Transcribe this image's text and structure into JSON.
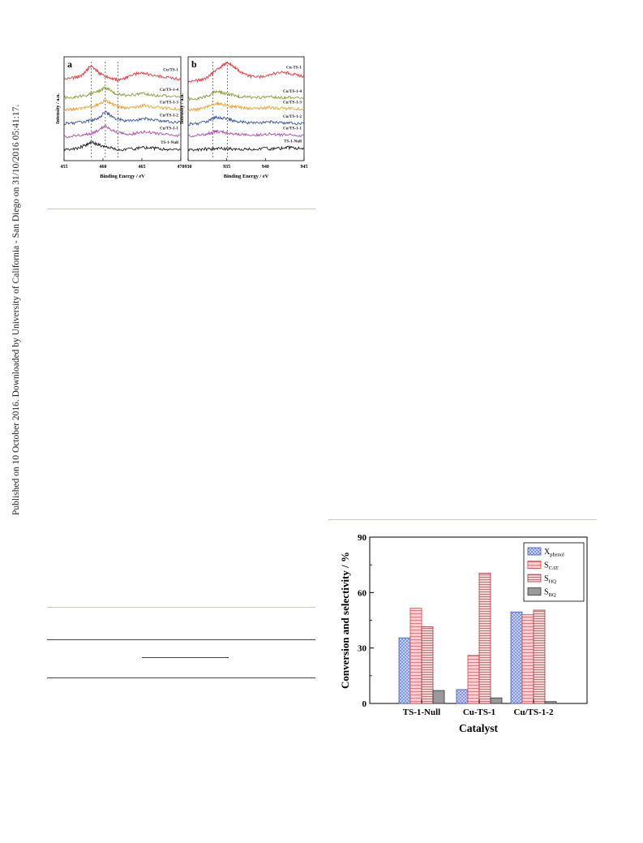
{
  "side_note": "Published on 10 October 2016. Downloaded by University of California - San Diego on 31/10/2016 05:41:17.",
  "chart_data": [
    {
      "type": "line",
      "panel_label": "a",
      "xlabel": "Binding Energy  / eV",
      "ylabel": "Intensity / a.u.",
      "xlim": [
        455,
        470
      ],
      "xticks": [
        "455",
        "460",
        "465",
        "470"
      ],
      "dashed_lines_x": [
        458.5,
        460.3,
        461.9
      ],
      "series": [
        {
          "name": "Cu/TS-1",
          "color": "#e8383d",
          "values": [
            [
              455,
              6.35
            ],
            [
              456,
              6.45
            ],
            [
              457,
              6.55
            ],
            [
              457.7,
              6.85
            ],
            [
              458.4,
              7.35
            ],
            [
              459.0,
              7.1
            ],
            [
              459.6,
              6.75
            ],
            [
              460.3,
              6.6
            ],
            [
              461.0,
              6.45
            ],
            [
              461.8,
              6.3
            ],
            [
              462.5,
              6.35
            ],
            [
              463.2,
              6.5
            ],
            [
              464.0,
              6.7
            ],
            [
              464.8,
              6.85
            ],
            [
              465.6,
              6.75
            ],
            [
              466.5,
              6.6
            ],
            [
              467.5,
              6.55
            ],
            [
              468.5,
              6.45
            ],
            [
              470,
              6.35
            ]
          ]
        },
        {
          "name": "Cu/TS-1-4",
          "color": "#8a9a3a",
          "values": [
            [
              455,
              5.0
            ],
            [
              456,
              5.05
            ],
            [
              457,
              5.1
            ],
            [
              458,
              5.2
            ],
            [
              458.6,
              5.35
            ],
            [
              459.4,
              5.45
            ],
            [
              460.2,
              5.75
            ],
            [
              460.8,
              5.6
            ],
            [
              461.5,
              5.35
            ],
            [
              462.3,
              5.2
            ],
            [
              463.2,
              5.15
            ],
            [
              464.2,
              5.25
            ],
            [
              465.0,
              5.35
            ],
            [
              466.0,
              5.25
            ],
            [
              467.0,
              5.15
            ],
            [
              468.5,
              5.1
            ],
            [
              470,
              5.05
            ]
          ]
        },
        {
          "name": "Cu/TS-1-3",
          "color": "#f0a030",
          "values": [
            [
              455,
              4.1
            ],
            [
              456,
              4.15
            ],
            [
              457,
              4.2
            ],
            [
              458,
              4.3
            ],
            [
              458.8,
              4.4
            ],
            [
              459.6,
              4.55
            ],
            [
              460.3,
              4.85
            ],
            [
              461.0,
              4.6
            ],
            [
              461.8,
              4.35
            ],
            [
              462.6,
              4.3
            ],
            [
              463.5,
              4.25
            ],
            [
              464.5,
              4.35
            ],
            [
              465.3,
              4.45
            ],
            [
              466.3,
              4.35
            ],
            [
              467.5,
              4.25
            ],
            [
              468.5,
              4.2
            ],
            [
              470,
              4.15
            ]
          ]
        },
        {
          "name": "Cu/TS-1-2",
          "color": "#3a57a8",
          "values": [
            [
              455,
              3.1
            ],
            [
              456,
              3.15
            ],
            [
              457,
              3.2
            ],
            [
              458,
              3.3
            ],
            [
              458.8,
              3.4
            ],
            [
              459.6,
              3.6
            ],
            [
              460.3,
              3.95
            ],
            [
              461.0,
              3.7
            ],
            [
              461.8,
              3.45
            ],
            [
              462.6,
              3.35
            ],
            [
              463.5,
              3.3
            ],
            [
              464.5,
              3.4
            ],
            [
              465.3,
              3.5
            ],
            [
              466.3,
              3.4
            ],
            [
              467.5,
              3.3
            ],
            [
              468.5,
              3.25
            ],
            [
              470,
              3.2
            ]
          ]
        },
        {
          "name": "Cu/TS-1-1",
          "color": "#b04ab0",
          "values": [
            [
              455,
              2.15
            ],
            [
              456,
              2.2
            ],
            [
              457,
              2.25
            ],
            [
              458,
              2.35
            ],
            [
              458.8,
              2.45
            ],
            [
              459.6,
              2.65
            ],
            [
              460.3,
              3.0
            ],
            [
              461.0,
              2.7
            ],
            [
              461.8,
              2.5
            ],
            [
              462.6,
              2.4
            ],
            [
              463.5,
              2.35
            ],
            [
              464.5,
              2.45
            ],
            [
              465.3,
              2.5
            ],
            [
              466.3,
              2.45
            ],
            [
              467.5,
              2.35
            ],
            [
              468.5,
              2.3
            ],
            [
              470,
              2.25
            ]
          ]
        },
        {
          "name": "TS-1-Null",
          "color": "#222222",
          "values": [
            [
              455,
              1.2
            ],
            [
              456,
              1.25
            ],
            [
              457,
              1.35
            ],
            [
              457.8,
              1.55
            ],
            [
              458.5,
              1.75
            ],
            [
              459.2,
              1.6
            ],
            [
              460.0,
              1.45
            ],
            [
              460.8,
              1.35
            ],
            [
              461.6,
              1.25
            ],
            [
              462.5,
              1.2
            ],
            [
              463.5,
              1.25
            ],
            [
              464.5,
              1.3
            ],
            [
              465.5,
              1.35
            ],
            [
              466.5,
              1.3
            ],
            [
              467.5,
              1.25
            ],
            [
              468.5,
              1.2
            ],
            [
              470,
              1.2
            ]
          ]
        }
      ]
    },
    {
      "type": "line",
      "panel_label": "b",
      "xlabel": "Binding Energy  / eV",
      "ylabel": "Intensity / a.u.",
      "xlim": [
        930,
        945
      ],
      "xticks": [
        "930",
        "935",
        "940",
        "945"
      ],
      "dashed_lines_x": [
        933.2,
        935.1
      ],
      "series": [
        {
          "name": "Cu-TS-1",
          "color": "#e8383d",
          "values": [
            [
              930,
              6.15
            ],
            [
              931,
              6.25
            ],
            [
              932,
              6.35
            ],
            [
              932.8,
              6.6
            ],
            [
              933.5,
              7.0
            ],
            [
              934.2,
              7.25
            ],
            [
              934.8,
              7.5
            ],
            [
              935.3,
              7.55
            ],
            [
              935.9,
              7.3
            ],
            [
              936.6,
              6.95
            ],
            [
              937.4,
              6.7
            ],
            [
              938.2,
              6.55
            ],
            [
              939.0,
              6.5
            ],
            [
              940.0,
              6.6
            ],
            [
              941.0,
              6.75
            ],
            [
              942.0,
              6.85
            ],
            [
              943.0,
              6.8
            ],
            [
              944.0,
              6.65
            ],
            [
              945,
              6.55
            ]
          ]
        },
        {
          "name": "Cu/TS-1-4",
          "color": "#8a9a3a",
          "values": [
            [
              930,
              4.9
            ],
            [
              931,
              4.95
            ],
            [
              932,
              5.05
            ],
            [
              932.8,
              5.2
            ],
            [
              933.5,
              5.45
            ],
            [
              934.2,
              5.4
            ],
            [
              935.0,
              5.3
            ],
            [
              935.8,
              5.2
            ],
            [
              936.6,
              5.1
            ],
            [
              937.5,
              5.05
            ],
            [
              938.5,
              5.0
            ],
            [
              939.5,
              5.05
            ],
            [
              940.5,
              5.1
            ],
            [
              941.5,
              5.05
            ],
            [
              942.5,
              5.0
            ],
            [
              943.5,
              5.0
            ],
            [
              945,
              4.95
            ]
          ]
        },
        {
          "name": "Cu/TS-1-3",
          "color": "#f0a030",
          "values": [
            [
              930,
              4.1
            ],
            [
              931,
              4.15
            ],
            [
              932,
              4.25
            ],
            [
              932.8,
              4.4
            ],
            [
              933.5,
              4.6
            ],
            [
              934.2,
              4.55
            ],
            [
              935.0,
              4.45
            ],
            [
              935.8,
              4.35
            ],
            [
              936.6,
              4.3
            ],
            [
              937.5,
              4.25
            ],
            [
              938.5,
              4.2
            ],
            [
              939.5,
              4.25
            ],
            [
              940.5,
              4.3
            ],
            [
              941.5,
              4.25
            ],
            [
              942.5,
              4.2
            ],
            [
              943.5,
              4.2
            ],
            [
              945,
              4.15
            ]
          ]
        },
        {
          "name": "Cu/TS-1-2",
          "color": "#3a57a8",
          "values": [
            [
              930,
              3.05
            ],
            [
              931,
              3.1
            ],
            [
              932,
              3.2
            ],
            [
              932.8,
              3.35
            ],
            [
              933.5,
              3.6
            ],
            [
              934.2,
              3.55
            ],
            [
              935.0,
              3.45
            ],
            [
              935.8,
              3.35
            ],
            [
              936.6,
              3.25
            ],
            [
              937.5,
              3.2
            ],
            [
              938.5,
              3.15
            ],
            [
              939.5,
              3.2
            ],
            [
              940.5,
              3.25
            ],
            [
              941.5,
              3.2
            ],
            [
              942.5,
              3.15
            ],
            [
              943.5,
              3.15
            ],
            [
              945,
              3.1
            ]
          ]
        },
        {
          "name": "Cu/TS-1-1",
          "color": "#b04ab0",
          "values": [
            [
              930,
              2.2
            ],
            [
              931,
              2.25
            ],
            [
              932,
              2.3
            ],
            [
              932.8,
              2.4
            ],
            [
              933.5,
              2.55
            ],
            [
              934.2,
              2.5
            ],
            [
              935.0,
              2.45
            ],
            [
              935.8,
              2.4
            ],
            [
              936.6,
              2.35
            ],
            [
              937.5,
              2.3
            ],
            [
              938.5,
              2.3
            ],
            [
              939.5,
              2.3
            ],
            [
              940.5,
              2.35
            ],
            [
              941.5,
              2.3
            ],
            [
              942.5,
              2.3
            ],
            [
              943.5,
              2.25
            ],
            [
              945,
              2.25
            ]
          ]
        },
        {
          "name": "TS-1-Null",
          "color": "#222222",
          "values": [
            [
              930,
              1.2
            ],
            [
              931,
              1.2
            ],
            [
              932,
              1.25
            ],
            [
              933,
              1.25
            ],
            [
              934,
              1.3
            ],
            [
              935,
              1.25
            ],
            [
              936,
              1.25
            ],
            [
              937,
              1.2
            ],
            [
              938,
              1.25
            ],
            [
              939,
              1.25
            ],
            [
              940,
              1.3
            ],
            [
              941,
              1.25
            ],
            [
              942,
              1.3
            ],
            [
              943,
              1.35
            ],
            [
              944,
              1.3
            ],
            [
              945,
              1.3
            ]
          ]
        }
      ]
    },
    {
      "type": "bar",
      "xlabel": "Catalyst",
      "ylabel": "Conversion and selectivity / %",
      "ylim": [
        0,
        90
      ],
      "yticks": [
        "0",
        "30",
        "60",
        "90"
      ],
      "legend_position": "top-right",
      "categories": [
        "TS-1-Null",
        "Cu-TS-1",
        "Cu/TS-1-2"
      ],
      "series": [
        {
          "name": "X",
          "sub": "phenol",
          "color": "#3a57c8",
          "fill": "#c9d0ef",
          "pattern": "cross",
          "values": [
            35.5,
            7.5,
            49.5
          ]
        },
        {
          "name": "S",
          "sub": "CAT",
          "color": "#e43a3a",
          "fill": "#fbd6d6",
          "pattern": "hlines",
          "values": [
            51.5,
            26.0,
            48.0
          ]
        },
        {
          "name": "S",
          "sub": "HQ",
          "color": "#a03a3a",
          "fill": "#efd6d6",
          "pattern": "hlines-dense",
          "values": [
            41.5,
            70.5,
            50.5
          ]
        },
        {
          "name": "S",
          "sub": "BQ",
          "color": "#333333",
          "fill": "#9a9a9a",
          "pattern": "solid",
          "values": [
            7.0,
            3.0,
            1.0
          ]
        }
      ]
    }
  ]
}
